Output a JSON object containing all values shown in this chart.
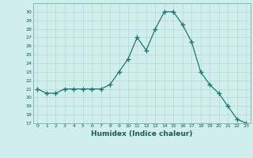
{
  "x": [
    0,
    1,
    2,
    3,
    4,
    5,
    6,
    7,
    8,
    9,
    10,
    11,
    12,
    13,
    14,
    15,
    16,
    17,
    18,
    19,
    20,
    21,
    22,
    23
  ],
  "y": [
    21,
    20.5,
    20.5,
    21,
    21,
    21,
    21,
    21,
    21.5,
    23,
    24.5,
    27,
    25.5,
    28,
    30,
    30,
    28.5,
    26.5,
    23,
    21.5,
    20.5,
    19,
    17.5,
    17
  ],
  "line_color": "#1a7a6e",
  "marker": "+",
  "marker_size": 4,
  "xlabel": "Humidex (Indice chaleur)",
  "ylim": [
    17,
    31
  ],
  "xlim": [
    -0.5,
    23.5
  ],
  "yticks": [
    17,
    18,
    19,
    20,
    21,
    22,
    23,
    24,
    25,
    26,
    27,
    28,
    29,
    30
  ],
  "xticks": [
    0,
    1,
    2,
    3,
    4,
    5,
    6,
    7,
    8,
    9,
    10,
    11,
    12,
    13,
    14,
    15,
    16,
    17,
    18,
    19,
    20,
    21,
    22,
    23
  ],
  "bg_color": "#d0eeeb",
  "grid_color": "#b8d8d4",
  "tick_color": "#1a5a50",
  "label_color": "#1a5a50"
}
